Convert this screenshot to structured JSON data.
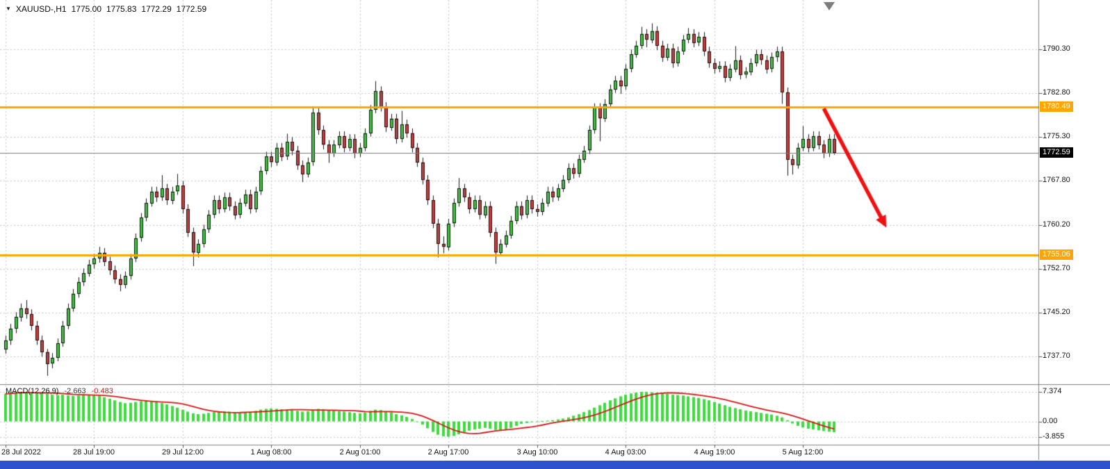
{
  "header": {
    "symbol_timeframe": "XAUUSD-,H1",
    "open": "1775.00",
    "high": "1775.83",
    "low": "1772.29",
    "close": "1772.59"
  },
  "icons": {
    "symbol_dropdown": "▼"
  },
  "colors": {
    "background": "#ffffff",
    "up": "#3fbf3f",
    "down": "#c53c3c",
    "outline": "#141414",
    "grid": "#c6c6c6",
    "hline": "#ffa500",
    "current_line": "#7a7a7a",
    "current_tag_bg": "#000000",
    "arrow": "#f01010",
    "macd_hist": "#3ddc3d",
    "macd_signal": "#d41717",
    "separator": "#7f7f7f",
    "axis_text": "#111111",
    "bottom_strip": "#2d52cc",
    "shift_marker": "#7d7d7d"
  },
  "chart_data": {
    "type": "candlestick",
    "symbol": "XAUUSD-",
    "timeframe": "H1",
    "y_axis": {
      "ticks": [
        1790.3,
        1782.8,
        1775.3,
        1767.8,
        1760.2,
        1752.7,
        1745.2,
        1737.7
      ],
      "labels": [
        "1790.30",
        "1782.80",
        "1775.30",
        "1767.80",
        "1760.20",
        "1752.70",
        "1745.20",
        "1737.70"
      ]
    },
    "x_axis": {
      "labels": [
        "28 Jul 2022",
        "28 Jul 19:00",
        "29 Jul 12:00",
        "1 Aug 08:00",
        "2 Aug 01:00",
        "2 Aug 17:00",
        "3 Aug 10:00",
        "4 Aug 03:00",
        "4 Aug 19:00",
        "5 Aug 12:00"
      ],
      "label_bar_indices": [
        0,
        17,
        34,
        51,
        68,
        85,
        102,
        119,
        136,
        153
      ]
    },
    "hlines": [
      {
        "price": 1780.49,
        "label": "1780.49",
        "role": "resistance"
      },
      {
        "price": 1755.06,
        "label": "1755.06",
        "role": "support"
      }
    ],
    "current_price": {
      "value": 1772.59,
      "label": "1772.59"
    },
    "trend_arrow": {
      "from_bar": 157,
      "from_price": 1780.2,
      "to_bar": 169,
      "to_price": 1759.8
    },
    "candles": [
      [
        1739.0,
        1741.3,
        1738.2,
        1740.5
      ],
      [
        1740.5,
        1743.3,
        1739.7,
        1742.5
      ],
      [
        1742.5,
        1745.3,
        1741.7,
        1744.5
      ],
      [
        1744.5,
        1746.8,
        1743.7,
        1746.0
      ],
      [
        1746.0,
        1747.4,
        1744.2,
        1745.0
      ],
      [
        1745.0,
        1745.8,
        1742.2,
        1743.0
      ],
      [
        1743.0,
        1743.8,
        1739.7,
        1740.5
      ],
      [
        1740.5,
        1741.3,
        1737.7,
        1738.5
      ],
      [
        1738.5,
        1739.0,
        1734.4,
        1736.5
      ],
      [
        1736.5,
        1738.3,
        1735.7,
        1737.5
      ],
      [
        1737.5,
        1740.8,
        1736.9,
        1740.0
      ],
      [
        1740.0,
        1743.8,
        1739.4,
        1743.0
      ],
      [
        1743.0,
        1746.8,
        1742.4,
        1746.0
      ],
      [
        1746.0,
        1749.3,
        1745.4,
        1748.5
      ],
      [
        1748.5,
        1751.3,
        1747.8,
        1750.5
      ],
      [
        1750.5,
        1752.8,
        1749.8,
        1752.0
      ],
      [
        1752.0,
        1754.3,
        1751.4,
        1753.5
      ],
      [
        1753.5,
        1755.3,
        1752.8,
        1754.5
      ],
      [
        1754.5,
        1756.5,
        1753.8,
        1755.5
      ],
      [
        1755.5,
        1756.3,
        1753.2,
        1754.0
      ],
      [
        1754.0,
        1754.8,
        1751.7,
        1752.5
      ],
      [
        1752.5,
        1753.3,
        1750.2,
        1751.0
      ],
      [
        1751.0,
        1751.8,
        1748.9,
        1750.0
      ],
      [
        1750.0,
        1752.3,
        1749.4,
        1751.5
      ],
      [
        1751.5,
        1755.3,
        1750.9,
        1754.5
      ],
      [
        1754.5,
        1758.8,
        1753.9,
        1758.0
      ],
      [
        1758.0,
        1762.3,
        1757.4,
        1761.5
      ],
      [
        1761.5,
        1764.8,
        1760.9,
        1764.0
      ],
      [
        1764.0,
        1766.8,
        1763.4,
        1766.0
      ],
      [
        1766.0,
        1766.8,
        1764.2,
        1765.0
      ],
      [
        1765.0,
        1768.8,
        1764.4,
        1766.5
      ],
      [
        1766.5,
        1767.3,
        1763.7,
        1764.5
      ],
      [
        1764.5,
        1766.8,
        1763.8,
        1766.0
      ],
      [
        1766.0,
        1769.0,
        1765.4,
        1767.0
      ],
      [
        1767.0,
        1767.8,
        1762.2,
        1763.0
      ],
      [
        1763.0,
        1763.8,
        1758.2,
        1759.0
      ],
      [
        1759.0,
        1759.8,
        1753.2,
        1755.5
      ],
      [
        1755.5,
        1757.8,
        1754.7,
        1757.0
      ],
      [
        1757.0,
        1760.3,
        1756.4,
        1759.5
      ],
      [
        1759.5,
        1762.8,
        1758.9,
        1762.0
      ],
      [
        1762.0,
        1765.3,
        1761.4,
        1764.5
      ],
      [
        1764.5,
        1765.3,
        1762.2,
        1763.0
      ],
      [
        1763.0,
        1765.8,
        1762.4,
        1765.0
      ],
      [
        1765.0,
        1765.8,
        1762.7,
        1763.5
      ],
      [
        1763.5,
        1764.3,
        1761.2,
        1762.0
      ],
      [
        1762.0,
        1764.8,
        1761.4,
        1764.0
      ],
      [
        1764.0,
        1766.3,
        1763.4,
        1765.5
      ],
      [
        1765.5,
        1766.3,
        1762.2,
        1763.0
      ],
      [
        1763.0,
        1766.8,
        1762.4,
        1766.0
      ],
      [
        1766.0,
        1770.3,
        1765.4,
        1769.5
      ],
      [
        1769.5,
        1772.8,
        1768.9,
        1772.0
      ],
      [
        1772.0,
        1772.8,
        1770.2,
        1771.0
      ],
      [
        1771.0,
        1774.3,
        1770.4,
        1773.5
      ],
      [
        1773.5,
        1774.3,
        1771.2,
        1772.0
      ],
      [
        1772.0,
        1775.9,
        1771.4,
        1774.5
      ],
      [
        1774.5,
        1775.3,
        1772.2,
        1773.0
      ],
      [
        1773.0,
        1773.8,
        1769.7,
        1770.5
      ],
      [
        1770.5,
        1771.3,
        1767.6,
        1769.0
      ],
      [
        1769.0,
        1771.8,
        1768.4,
        1771.0
      ],
      [
        1771.0,
        1780.6,
        1770.4,
        1779.5
      ],
      [
        1779.5,
        1780.3,
        1775.7,
        1776.5
      ],
      [
        1776.5,
        1777.3,
        1773.2,
        1774.0
      ],
      [
        1774.0,
        1774.8,
        1770.9,
        1772.5
      ],
      [
        1772.5,
        1774.8,
        1771.9,
        1774.0
      ],
      [
        1774.0,
        1776.3,
        1773.4,
        1775.5
      ],
      [
        1775.5,
        1776.3,
        1772.7,
        1773.5
      ],
      [
        1773.5,
        1775.8,
        1772.9,
        1775.0
      ],
      [
        1775.0,
        1775.8,
        1771.7,
        1772.5
      ],
      [
        1772.5,
        1774.3,
        1771.9,
        1773.5
      ],
      [
        1773.5,
        1776.8,
        1772.9,
        1776.0
      ],
      [
        1776.0,
        1780.8,
        1775.4,
        1780.0
      ],
      [
        1780.0,
        1784.9,
        1779.4,
        1783.2
      ],
      [
        1783.2,
        1784.0,
        1779.7,
        1780.5
      ],
      [
        1780.5,
        1781.3,
        1776.2,
        1777.0
      ],
      [
        1777.0,
        1779.3,
        1776.4,
        1778.5
      ],
      [
        1778.5,
        1779.3,
        1774.2,
        1775.0
      ],
      [
        1775.0,
        1779.8,
        1774.4,
        1777.5
      ],
      [
        1777.5,
        1778.3,
        1775.2,
        1776.0
      ],
      [
        1776.0,
        1776.8,
        1772.7,
        1773.5
      ],
      [
        1773.5,
        1774.3,
        1770.2,
        1771.0
      ],
      [
        1771.0,
        1771.8,
        1767.2,
        1768.0
      ],
      [
        1768.0,
        1768.8,
        1763.7,
        1764.5
      ],
      [
        1764.5,
        1765.3,
        1759.7,
        1760.5
      ],
      [
        1760.5,
        1761.3,
        1754.7,
        1757.0
      ],
      [
        1757.0,
        1758.3,
        1755.4,
        1756.5
      ],
      [
        1756.5,
        1761.3,
        1755.9,
        1760.5
      ],
      [
        1760.5,
        1764.8,
        1759.9,
        1764.0
      ],
      [
        1764.0,
        1768.3,
        1763.4,
        1766.5
      ],
      [
        1766.5,
        1767.3,
        1764.2,
        1765.0
      ],
      [
        1765.0,
        1765.8,
        1762.2,
        1763.0
      ],
      [
        1763.0,
        1765.3,
        1762.4,
        1764.5
      ],
      [
        1764.5,
        1765.3,
        1761.2,
        1762.0
      ],
      [
        1762.0,
        1764.3,
        1761.4,
        1763.5
      ],
      [
        1763.5,
        1764.3,
        1758.2,
        1759.0
      ],
      [
        1759.0,
        1759.8,
        1753.6,
        1755.5
      ],
      [
        1755.5,
        1757.8,
        1754.9,
        1757.0
      ],
      [
        1757.0,
        1759.3,
        1756.4,
        1758.5
      ],
      [
        1758.5,
        1761.8,
        1757.9,
        1761.0
      ],
      [
        1761.0,
        1764.3,
        1760.4,
        1763.5
      ],
      [
        1763.5,
        1764.3,
        1761.2,
        1762.0
      ],
      [
        1762.0,
        1765.3,
        1761.4,
        1764.5
      ],
      [
        1764.5,
        1765.3,
        1762.2,
        1763.0
      ],
      [
        1763.0,
        1763.8,
        1761.7,
        1762.5
      ],
      [
        1762.5,
        1764.8,
        1761.9,
        1764.0
      ],
      [
        1764.0,
        1766.8,
        1763.4,
        1766.0
      ],
      [
        1766.0,
        1766.8,
        1764.2,
        1765.0
      ],
      [
        1765.0,
        1767.3,
        1764.4,
        1766.5
      ],
      [
        1766.5,
        1768.8,
        1765.9,
        1768.0
      ],
      [
        1768.0,
        1770.8,
        1767.4,
        1770.0
      ],
      [
        1770.0,
        1770.8,
        1768.2,
        1769.0
      ],
      [
        1769.0,
        1772.3,
        1768.4,
        1771.5
      ],
      [
        1771.5,
        1773.8,
        1770.9,
        1773.0
      ],
      [
        1773.0,
        1777.3,
        1772.4,
        1776.5
      ],
      [
        1776.5,
        1781.1,
        1775.9,
        1780.3
      ],
      [
        1780.3,
        1781.1,
        1774.6,
        1778.5
      ],
      [
        1778.5,
        1781.8,
        1777.9,
        1781.0
      ],
      [
        1781.0,
        1784.3,
        1780.4,
        1783.5
      ],
      [
        1783.5,
        1785.8,
        1782.9,
        1785.0
      ],
      [
        1785.0,
        1785.8,
        1782.7,
        1784.0
      ],
      [
        1784.0,
        1787.8,
        1783.4,
        1787.0
      ],
      [
        1787.0,
        1790.3,
        1786.4,
        1789.5
      ],
      [
        1789.5,
        1791.8,
        1788.9,
        1791.0
      ],
      [
        1791.0,
        1794.2,
        1790.4,
        1793.0
      ],
      [
        1793.0,
        1793.8,
        1790.7,
        1792.0
      ],
      [
        1792.0,
        1794.8,
        1791.4,
        1793.5
      ],
      [
        1793.5,
        1794.3,
        1790.2,
        1791.0
      ],
      [
        1791.0,
        1791.8,
        1788.2,
        1789.0
      ],
      [
        1789.0,
        1791.3,
        1788.4,
        1790.5
      ],
      [
        1790.5,
        1791.3,
        1787.2,
        1788.0
      ],
      [
        1788.0,
        1790.8,
        1787.4,
        1790.0
      ],
      [
        1790.0,
        1792.8,
        1789.4,
        1792.0
      ],
      [
        1792.0,
        1794.0,
        1791.4,
        1793.0
      ],
      [
        1793.0,
        1793.8,
        1790.7,
        1791.5
      ],
      [
        1791.5,
        1793.3,
        1790.9,
        1792.5
      ],
      [
        1792.5,
        1793.3,
        1789.2,
        1790.0
      ],
      [
        1790.0,
        1790.8,
        1787.2,
        1788.0
      ],
      [
        1788.0,
        1788.8,
        1786.2,
        1787.0
      ],
      [
        1787.0,
        1788.3,
        1786.4,
        1787.5
      ],
      [
        1787.5,
        1788.3,
        1784.7,
        1785.5
      ],
      [
        1785.5,
        1787.8,
        1784.9,
        1787.0
      ],
      [
        1787.0,
        1790.9,
        1786.4,
        1788.5
      ],
      [
        1788.5,
        1789.3,
        1785.2,
        1786.0
      ],
      [
        1786.0,
        1787.3,
        1785.4,
        1786.5
      ],
      [
        1786.5,
        1788.8,
        1785.9,
        1788.0
      ],
      [
        1788.0,
        1790.3,
        1787.4,
        1789.5
      ],
      [
        1789.5,
        1790.3,
        1787.7,
        1788.5
      ],
      [
        1788.5,
        1789.3,
        1786.2,
        1787.0
      ],
      [
        1787.0,
        1789.8,
        1786.4,
        1789.0
      ],
      [
        1789.0,
        1790.8,
        1788.2,
        1790.0
      ],
      [
        1790.0,
        1790.8,
        1781.0,
        1783.0
      ],
      [
        1783.0,
        1783.8,
        1768.7,
        1771.5
      ],
      [
        1771.5,
        1772.3,
        1768.9,
        1770.5
      ],
      [
        1770.5,
        1774.3,
        1769.9,
        1773.5
      ],
      [
        1773.5,
        1777.2,
        1772.9,
        1775.0
      ],
      [
        1775.0,
        1775.8,
        1772.7,
        1773.5
      ],
      [
        1773.5,
        1776.3,
        1772.9,
        1775.5
      ],
      [
        1775.5,
        1776.3,
        1773.2,
        1774.0
      ],
      [
        1774.0,
        1774.8,
        1771.7,
        1772.5
      ],
      [
        1772.5,
        1775.8,
        1771.9,
        1775.0
      ],
      [
        1775.0,
        1775.83,
        1772.29,
        1772.59
      ]
    ],
    "macd": {
      "name": "MACD(12,26,9)",
      "main_value": "-2.663",
      "signal_value": "-0.483",
      "scale_ticks": [
        7.374,
        0,
        -3.855
      ],
      "scale_labels": [
        "7.374",
        "0.00",
        "-3.855"
      ],
      "histogram": [
        6.8,
        7.0,
        7.2,
        7.3,
        7.2,
        7.0,
        6.9,
        7.0,
        6.8,
        6.6,
        6.5,
        6.6,
        6.4,
        6.3,
        6.4,
        6.5,
        6.6,
        6.5,
        6.3,
        6.0,
        5.6,
        5.2,
        4.8,
        4.5,
        4.6,
        4.8,
        5.0,
        5.1,
        5.0,
        4.8,
        4.5,
        4.2,
        3.8,
        3.4,
        2.9,
        2.4,
        2.0,
        1.8,
        1.9,
        2.1,
        2.3,
        2.4,
        2.5,
        2.4,
        2.2,
        2.1,
        2.2,
        2.3,
        2.6,
        2.9,
        3.1,
        3.2,
        3.1,
        3.0,
        2.9,
        2.8,
        2.6,
        2.4,
        2.5,
        2.9,
        3.1,
        3.0,
        2.8,
        2.6,
        2.5,
        2.4,
        2.3,
        2.1,
        2.0,
        2.2,
        2.6,
        2.9,
        2.8,
        2.5,
        2.2,
        1.8,
        1.5,
        1.1,
        0.6,
        0.0,
        -0.8,
        -1.7,
        -2.6,
        -3.3,
        -3.7,
        -3.8,
        -3.6,
        -3.2,
        -2.7,
        -2.3,
        -2.0,
        -1.8,
        -1.6,
        -1.8,
        -2.1,
        -2.3,
        -2.0,
        -1.6,
        -1.1,
        -0.6,
        -0.4,
        -0.2,
        0.0,
        0.1,
        0.2,
        0.3,
        0.5,
        0.7,
        1.0,
        1.4,
        1.8,
        2.3,
        2.8,
        3.4,
        4.0,
        4.6,
        5.2,
        5.7,
        6.2,
        6.6,
        6.9,
        7.1,
        7.3,
        7.3,
        7.2,
        7.1,
        7.0,
        6.8,
        6.6,
        6.5,
        6.4,
        6.2,
        6.0,
        5.8,
        5.5,
        5.2,
        4.8,
        4.4,
        4.0,
        3.6,
        3.3,
        3.0,
        2.7,
        2.5,
        2.3,
        2.1,
        1.9,
        1.7,
        1.4,
        1.0,
        0.3,
        -0.5,
        -1.1,
        -1.5,
        -1.8,
        -2.0,
        -2.2,
        -2.4,
        -2.55,
        -2.663
      ]
    }
  }
}
